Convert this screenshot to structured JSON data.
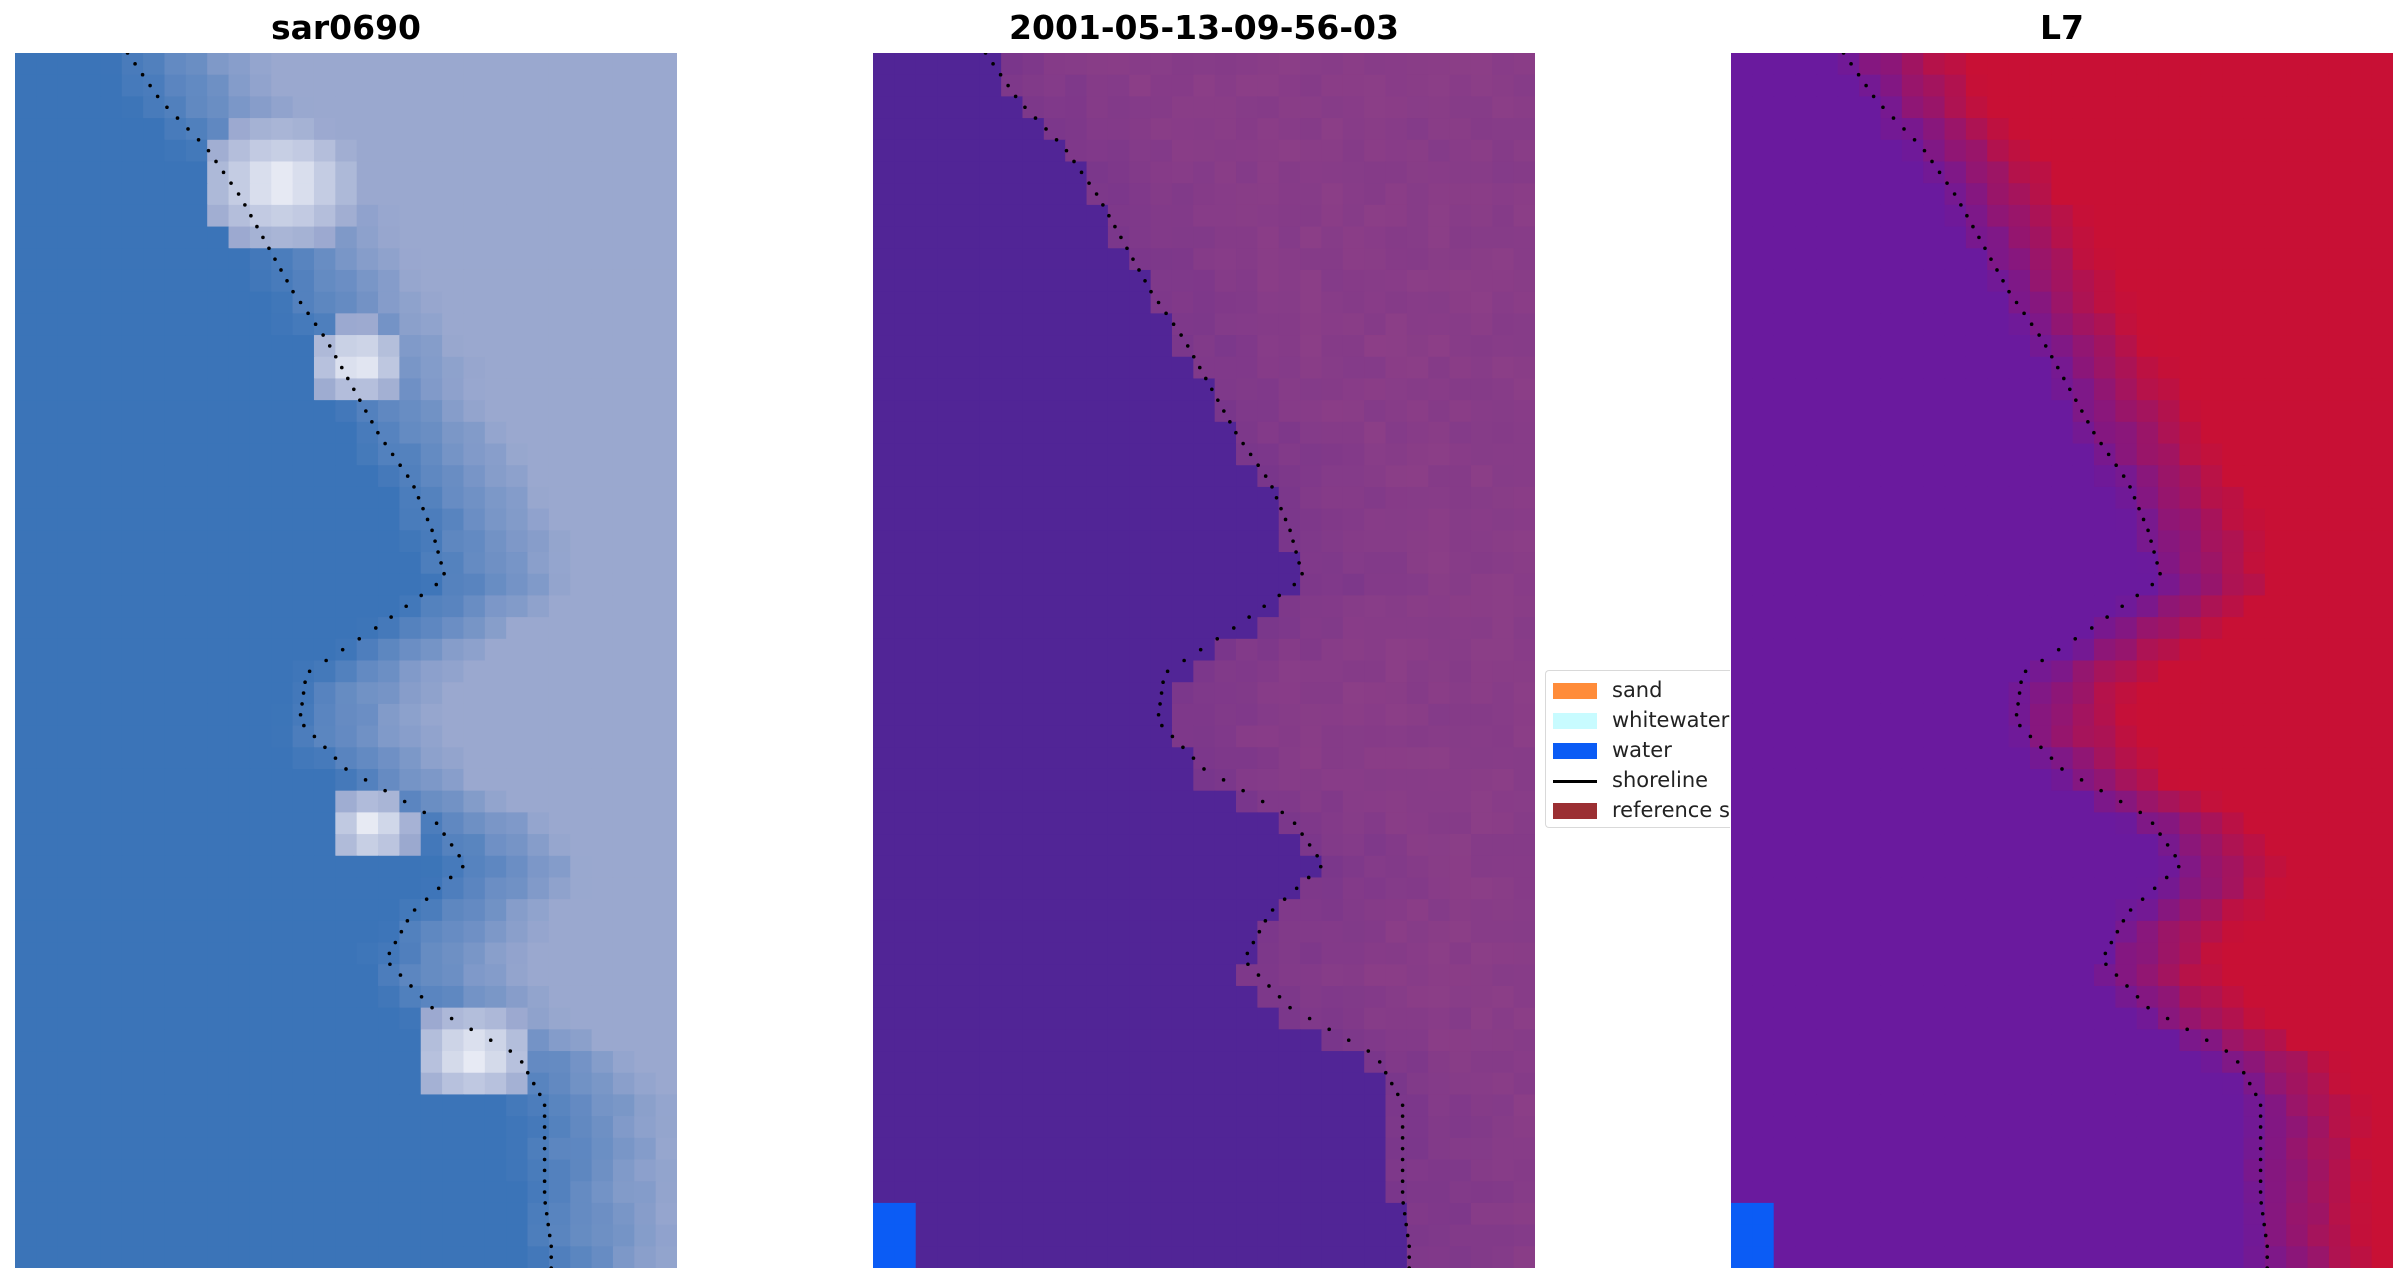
{
  "panels": [
    {
      "title": "sar0690",
      "style": "rgb"
    },
    {
      "title": "2001-05-13-09-56-03",
      "style": "classified"
    },
    {
      "title": "L7",
      "style": "index"
    }
  ],
  "legend": {
    "items": [
      {
        "label": "sand",
        "kind": "patch",
        "color": "#ff8c3a"
      },
      {
        "label": "whitewater",
        "kind": "patch",
        "color": "#c8fbff"
      },
      {
        "label": "water",
        "kind": "patch",
        "color": "#0b5cf5"
      },
      {
        "label": "shoreline",
        "kind": "line",
        "color": "#000000"
      },
      {
        "label": "reference shoreline",
        "kind": "patch",
        "color": "#9b2f33"
      }
    ]
  },
  "colors": {
    "water_rgb": "#3b74b8",
    "land_rgb": "#9aa8cf",
    "foam": "#ffffff",
    "classified_water": "#512596",
    "classified_land": "#8e3f86",
    "index_water": "#6a1a9e",
    "index_land": "#c81035",
    "corner_blue": "#0b5cf5",
    "shoreline_dots": "#000000"
  },
  "shoreline": {
    "row": [
      0,
      0.04,
      0.08,
      0.12,
      0.16,
      0.2,
      0.24,
      0.28,
      0.32,
      0.36,
      0.4,
      0.44,
      0.48,
      0.52,
      0.56,
      0.6,
      0.64,
      0.68,
      0.72,
      0.76,
      0.8,
      0.84,
      0.88,
      0.92,
      0.96,
      1.0
    ],
    "col": [
      0.17,
      0.22,
      0.29,
      0.34,
      0.38,
      0.42,
      0.47,
      0.51,
      0.55,
      0.6,
      0.63,
      0.65,
      0.55,
      0.44,
      0.43,
      0.5,
      0.63,
      0.68,
      0.6,
      0.56,
      0.63,
      0.76,
      0.8,
      0.8,
      0.8,
      0.81
    ]
  }
}
